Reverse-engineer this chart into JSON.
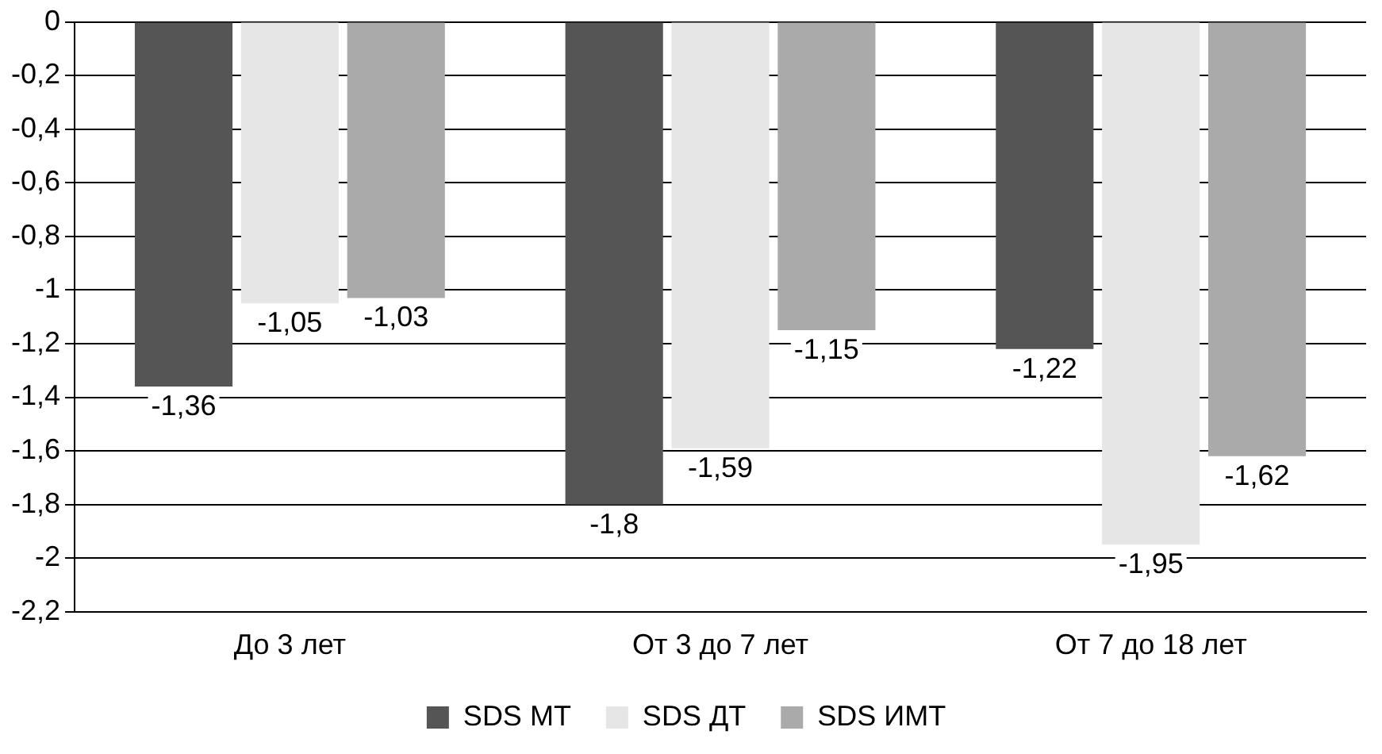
{
  "chart_data": {
    "type": "bar",
    "categories": [
      "До 3 лет",
      "От 3 до 7 лет",
      "От 7 до 18 лет"
    ],
    "series": [
      {
        "name": "SDS МТ",
        "color": "#555555",
        "values": [
          -1.36,
          -1.8,
          -1.22
        ],
        "value_labels": [
          "-1,36",
          "-1,8",
          "-1,22"
        ]
      },
      {
        "name": "SDS ДТ",
        "color": "#e6e6e6",
        "values": [
          -1.05,
          -1.59,
          -1.95
        ],
        "value_labels": [
          "-1,05",
          "-1,59",
          "-1,95"
        ]
      },
      {
        "name": "SDS ИМТ",
        "color": "#aaaaaa",
        "values": [
          -1.03,
          -1.15,
          -1.62
        ],
        "value_labels": [
          "-1,03",
          "-1,15",
          "-1,62"
        ]
      }
    ],
    "ylim": [
      -2.2,
      0
    ],
    "yticks": [
      {
        "value": 0,
        "label": "0"
      },
      {
        "value": -0.2,
        "label": "-0,2"
      },
      {
        "value": -0.4,
        "label": "-0,4"
      },
      {
        "value": -0.6,
        "label": "-0,6"
      },
      {
        "value": -0.8,
        "label": "-0,8"
      },
      {
        "value": -1,
        "label": "-1"
      },
      {
        "value": -1.2,
        "label": "-1,2"
      },
      {
        "value": -1.4,
        "label": "-1,4"
      },
      {
        "value": -1.6,
        "label": "-1,6"
      },
      {
        "value": -1.8,
        "label": "-1,8"
      },
      {
        "value": -2,
        "label": "-2"
      },
      {
        "value": -2.2,
        "label": "-2,2"
      }
    ],
    "grid": "y",
    "legend": "bottom"
  }
}
